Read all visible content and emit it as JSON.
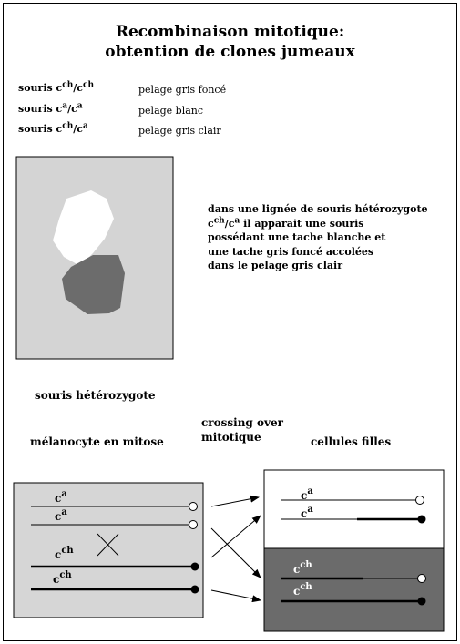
{
  "title_line1": "Recombinaison mitotique:",
  "title_line2": "obtention de clones jumeaux",
  "genotypes": [
    {
      "prefix": "souris c",
      "sup1": "ch",
      "mid": "/c",
      "sup2": "ch",
      "phenotype": "pelage gris foncé"
    },
    {
      "prefix": "souris c",
      "sup1": "a",
      "mid": "/c",
      "sup2": "a",
      "phenotype": "pelage blanc"
    },
    {
      "prefix": "souris c",
      "sup1": "ch",
      "mid": "/c",
      "sup2": "a",
      "phenotype": "pelage gris clair"
    }
  ],
  "description": {
    "line1": "dans une lignée de souris hétérozygote",
    "line2_prefix": "c",
    "line2_sup1": "ch",
    "line2_mid": "/c",
    "line2_sup2": "a",
    "line2_suffix": " il apparait une souris",
    "line3": "possédant une tache blanche et",
    "line4": "une tache gris foncé accolées",
    "line5": "dans le pelage gris clair"
  },
  "labels": {
    "heterozygous_mouse": "souris hétérozygote",
    "melanocyte": "mélanocyte en mitose",
    "crossing_line1": "crossing over",
    "crossing_line2": "mitotique",
    "daughter_cells": "cellules filles"
  },
  "allele_labels": {
    "base": "c",
    "a": "a",
    "ch": "ch"
  },
  "colors": {
    "mouse_body": "#d4d4d4",
    "white_patch": "#ffffff",
    "dark_patch": "#6c6c6c",
    "melanocyte_cell": "#d6d6d6",
    "dark_cell": "#6b6b6b"
  }
}
